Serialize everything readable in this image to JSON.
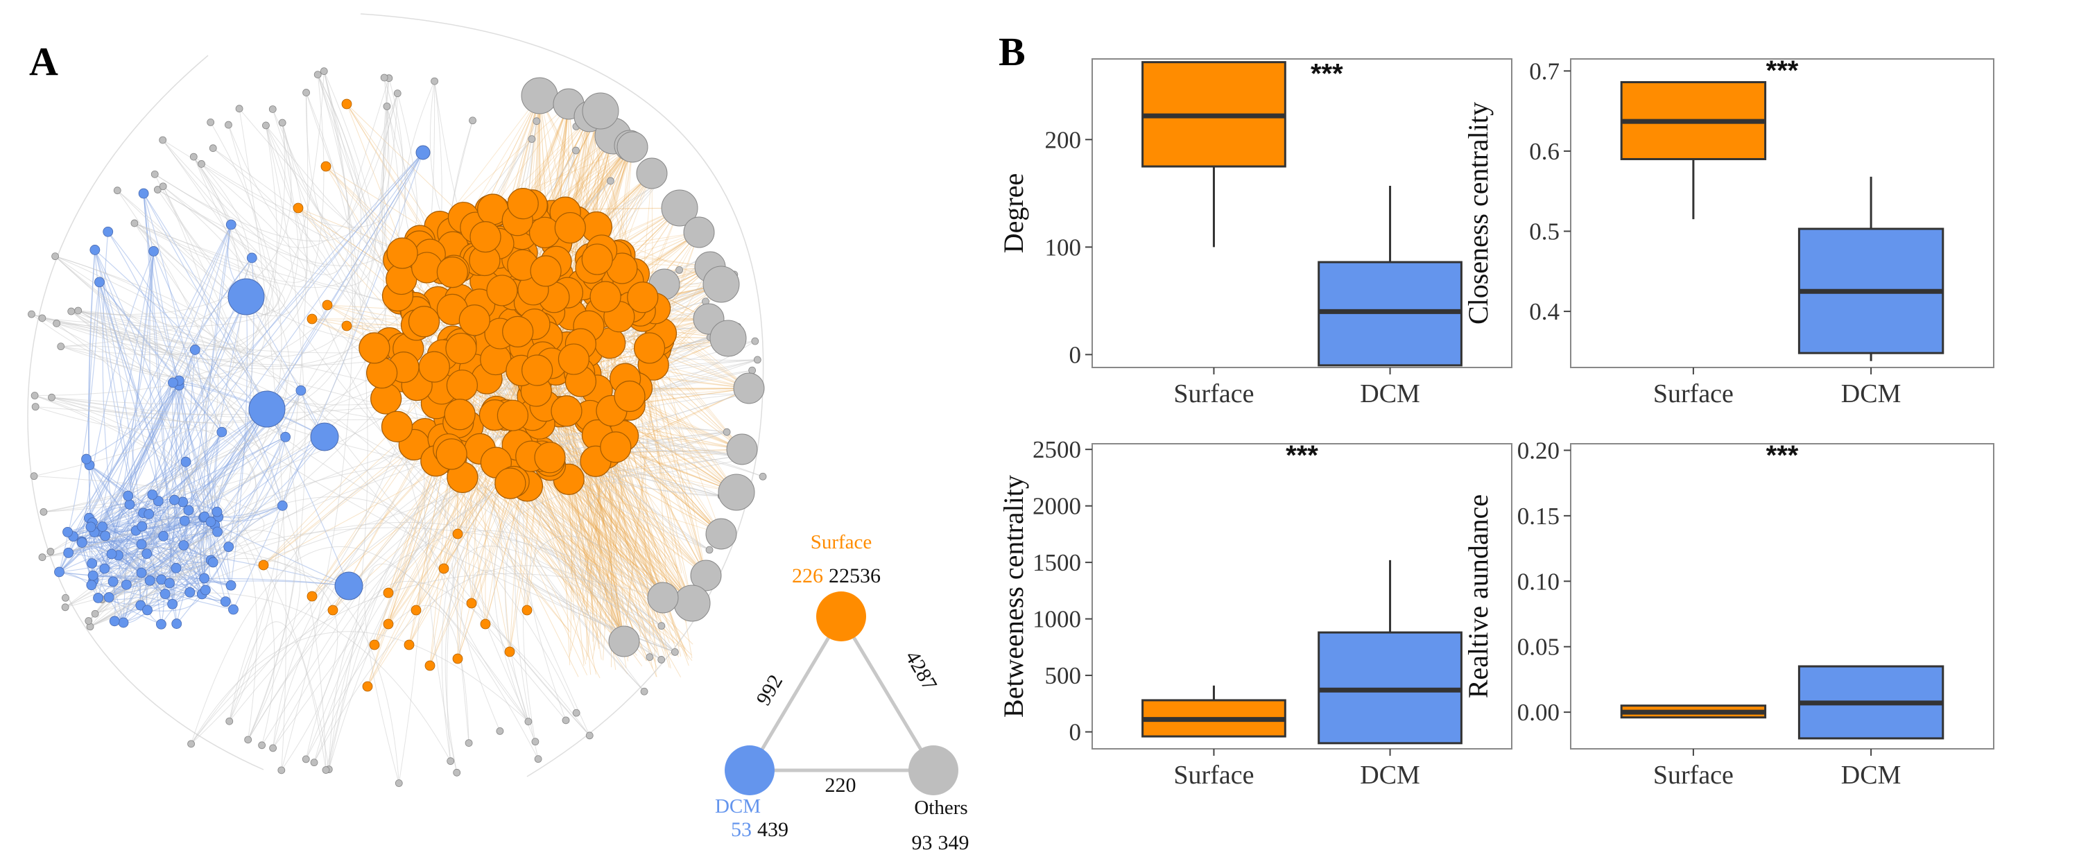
{
  "figure": {
    "panel_a_letter": "A",
    "panel_b_letter": "B"
  },
  "network": {
    "colors": {
      "surface": "#ff8c00",
      "dcm": "#6495ed",
      "others": "#bebebe",
      "surface_edge": "#e8a54a",
      "dcm_edge": "#7f9fe0",
      "others_edge": "#c8c8c8"
    },
    "groups": [
      {
        "key": "surface",
        "name": "Surface",
        "nodes": "226",
        "edges": "22536"
      },
      {
        "key": "dcm",
        "name": "DCM",
        "nodes": "53",
        "edges": "439"
      },
      {
        "key": "others",
        "name": "Others",
        "nodes": "93",
        "edges": "349"
      }
    ],
    "between": [
      {
        "pair": "surface-dcm",
        "value": "992"
      },
      {
        "pair": "surface-others",
        "value": "4287"
      },
      {
        "pair": "dcm-others",
        "value": "220"
      }
    ]
  },
  "chart_data": [
    {
      "type": "box",
      "ylabel": "Degree",
      "categories": [
        "Surface",
        "DCM"
      ],
      "ylim": [
        -12,
        275
      ],
      "yticks": [
        0,
        100,
        200
      ],
      "significance": "***",
      "boxes": [
        {
          "group": "Surface",
          "whisker_low": 100,
          "q1": 175,
          "median": 222,
          "q3": 272,
          "whisker_high": 272,
          "color": "#ff8c00"
        },
        {
          "group": "DCM",
          "whisker_low": -10,
          "q1": -10,
          "median": 40,
          "q3": 86,
          "whisker_high": 157,
          "color": "#6495ed"
        }
      ]
    },
    {
      "type": "box",
      "ylabel": "Closeness centrality",
      "categories": [
        "Surface",
        "DCM"
      ],
      "ylim": [
        0.33,
        0.715
      ],
      "yticks": [
        0.4,
        0.5,
        0.6,
        0.7
      ],
      "significance": "***",
      "boxes": [
        {
          "group": "Surface",
          "whisker_low": 0.515,
          "q1": 0.59,
          "median": 0.637,
          "q3": 0.686,
          "whisker_high": 0.686,
          "color": "#ff8c00"
        },
        {
          "group": "DCM",
          "whisker_low": 0.338,
          "q1": 0.348,
          "median": 0.425,
          "q3": 0.503,
          "whisker_high": 0.568,
          "color": "#6495ed"
        }
      ]
    },
    {
      "type": "box",
      "ylabel": "Betweeness centrality",
      "categories": [
        "Surface",
        "DCM"
      ],
      "ylim": [
        -150,
        2550
      ],
      "yticks": [
        0,
        500,
        1000,
        1500,
        2000,
        2500
      ],
      "significance": "***",
      "boxes": [
        {
          "group": "Surface",
          "whisker_low": -40,
          "q1": -40,
          "median": 110,
          "q3": 280,
          "whisker_high": 410,
          "color": "#ff8c00"
        },
        {
          "group": "DCM",
          "whisker_low": -100,
          "q1": -100,
          "median": 370,
          "q3": 880,
          "whisker_high": 1520,
          "color": "#6495ed"
        }
      ]
    },
    {
      "type": "box",
      "ylabel": "Realtive aundance",
      "categories": [
        "Surface",
        "DCM"
      ],
      "ylim": [
        -0.028,
        0.205
      ],
      "yticks": [
        0.0,
        0.05,
        0.1,
        0.15,
        0.2
      ],
      "ytick_labels": [
        "0.00",
        "0.05",
        "0.10",
        "0.15",
        "0.20"
      ],
      "significance": "***",
      "boxes": [
        {
          "group": "Surface",
          "whisker_low": -0.004,
          "q1": -0.004,
          "median": 0.0,
          "q3": 0.005,
          "whisker_high": 0.005,
          "color": "#ff8c00"
        },
        {
          "group": "DCM",
          "whisker_low": -0.02,
          "q1": -0.02,
          "median": 0.007,
          "q3": 0.035,
          "whisker_high": 0.035,
          "color": "#6495ed"
        }
      ]
    }
  ]
}
